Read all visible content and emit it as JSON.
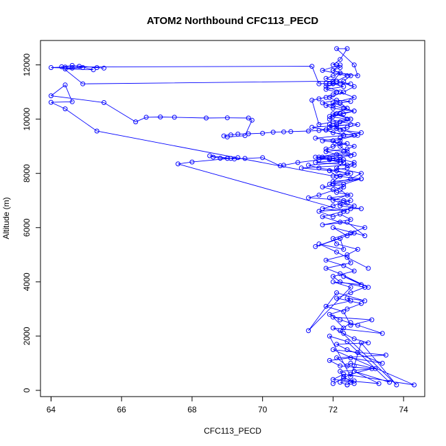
{
  "chart_data": {
    "type": "scatter",
    "title": "ATOM2 Northbound CFC113_PECD",
    "xlabel": "CFC113_PECD",
    "ylabel": "Altitude (m)",
    "xlim": [
      63.7,
      74.6
    ],
    "ylim": [
      -230,
      12900
    ],
    "x_ticks": [
      64,
      66,
      68,
      70,
      72,
      74
    ],
    "y_ticks": [
      0,
      2000,
      4000,
      6000,
      8000,
      10000,
      12000
    ],
    "grid": false,
    "legend": "none",
    "series": [
      {
        "color": "#0000FF",
        "marker": "open-circle",
        "connected": true,
        "x": [
          72.4,
          72.5,
          72.6,
          72.3,
          72.2,
          73.2,
          72.5,
          72.4,
          72.1,
          73.5,
          72.7,
          72.0,
          74.3,
          72.3,
          72.0,
          73.3,
          72.6,
          73.6,
          72.4,
          71.9,
          72.5,
          72.6,
          72.8,
          73.8,
          72.2,
          72.5,
          72.3,
          72.0,
          73.1,
          72.5,
          72.3,
          71.8,
          72.5,
          72.4,
          72.9,
          72.1,
          71.3,
          72.5,
          72.0,
          72.8,
          72.3,
          73.0,
          72.2,
          71.8,
          72.5,
          72.4,
          73.0,
          72.1,
          71.6,
          72.3,
          72.2,
          71.5,
          72.6,
          72.4,
          72.0,
          72.9,
          72.4,
          71.7,
          72.5,
          72.2,
          72.0,
          71.6,
          72.5,
          72.8,
          72.2,
          72.4,
          72.3,
          71.9,
          72.5,
          72.1,
          72.0,
          71.7,
          72.3,
          72.8,
          72.0,
          72.2,
          72.5,
          71.9,
          71.1,
          72.4,
          72.6,
          72.3,
          72.0,
          71.7,
          72.2,
          71.5,
          72.6,
          72.4,
          71.9,
          72.1,
          72.8,
          72.0,
          72.3,
          71.6,
          71.3,
          72.5,
          72.2,
          72.0,
          71.7,
          72.4,
          67.6,
          68.0,
          69.3,
          69.0,
          68.8,
          68.6,
          68.5,
          69.1,
          69.2,
          69.5,
          70.0,
          70.5,
          70.6,
          71.0,
          71.6,
          71.9,
          72.2,
          72.5,
          72.1,
          71.8,
          72.4,
          72.6,
          72.2,
          72.0,
          71.5,
          72.3,
          72.8,
          72.2,
          71.9,
          72.1,
          72.5,
          71.4,
          71.8,
          72.0,
          72.6,
          72.2,
          71.7,
          72.4,
          72.0,
          71.8,
          72.3,
          72.6,
          71.5,
          71.9,
          72.2,
          71.3,
          71.6,
          72.1,
          72.4,
          72.0,
          65.3,
          64.4,
          64.0,
          64.6,
          64.4,
          64.0,
          65.5,
          66.4,
          66.7,
          67.1,
          67.5,
          68.4,
          69.0,
          69.6,
          69.7,
          69.5,
          69.0,
          68.9,
          69.1,
          69.3,
          69.6,
          70.0,
          70.3,
          70.6,
          70.8,
          71.3,
          71.6,
          71.8,
          72.1,
          72.4,
          72.7,
          72.2,
          71.9,
          72.0,
          72.3,
          72.6,
          72.0,
          71.8,
          72.2,
          72.5,
          72.1,
          71.7,
          72.0,
          72.3,
          72.6,
          72.2,
          71.9,
          72.4,
          72.0,
          71.6,
          71.4,
          71.6,
          71.8,
          72.0,
          72.1,
          71.8,
          72.3,
          72.0,
          71.9,
          72.2,
          72.5,
          72.1,
          71.8,
          72.0,
          72.2,
          72.0,
          72.2,
          72.1,
          72.0,
          72.2,
          72.4,
          72.1,
          72.6,
          72.7,
          72.2,
          72.0,
          64.9,
          64.3,
          64.6,
          65.3,
          65.5,
          64.8,
          65.2,
          64.4,
          64.9,
          64.6,
          64.0,
          64.4,
          71.4,
          71.6,
          71.8,
          72.0,
          72.2,
          71.9
        ]
      },
      {
        "color": "#0000FF",
        "marker": "open-circle",
        "connected": true,
        "x": [
          72.4,
          72.2,
          72.6,
          72.3,
          72.0,
          72.5,
          73.1,
          72.2,
          71.9,
          72.5,
          73.4,
          72.4,
          72.1,
          73.0,
          72.6,
          72.3,
          72.0,
          73.4,
          72.7,
          72.2,
          71.9,
          72.4,
          72.8,
          72.1,
          72.5,
          72.9,
          72.2,
          72.0,
          72.6,
          72.3,
          71.8,
          72.4,
          72.7,
          72.1,
          72.0,
          72.5,
          72.9,
          72.2,
          71.7,
          72.3,
          72.6,
          72.0,
          72.4,
          72.2,
          71.9,
          72.5,
          72.8,
          72.1,
          72.3,
          71.6,
          72.4,
          72.2,
          72.0,
          72.7,
          72.3,
          71.9,
          72.5,
          72.1,
          72.4,
          72.0,
          72.6,
          72.2,
          71.8,
          72.3,
          72.5,
          72.0,
          72.2,
          71.7,
          72.4,
          72.1,
          72.6,
          72.3,
          71.9,
          72.2,
          72.4,
          72.0,
          72.5,
          72.1,
          71.8,
          72.3,
          72.2,
          72.0
        ]
      }
    ],
    "y_values": [
      [
        200,
        300,
        250,
        500,
        700,
        800,
        1000,
        900,
        1200,
        1300,
        1400,
        1500,
        200,
        600,
        400,
        250,
        700,
        300,
        1800,
        2000,
        500,
        900,
        1750,
        200,
        2200,
        2500,
        2300,
        2700,
        2600,
        2400,
        2900,
        3100,
        3300,
        3400,
        3300,
        3600,
        2200,
        3800,
        4000,
        3900,
        4200,
        3800,
        4300,
        4500,
        4700,
        4900,
        4500,
        5100,
        5400,
        5200,
        5600,
        5300,
        5800,
        5700,
        6000,
        5700,
        6200,
        6100,
        6300,
        6500,
        6400,
        6600,
        6700,
        6700,
        6800,
        6900,
        7000,
        7100,
        7200,
        7300,
        7400,
        7500,
        7600,
        7800,
        7700,
        7900,
        8000,
        8100,
        8200,
        8300,
        8400,
        8500,
        8550,
        8600,
        8500,
        8400,
        8300,
        8200,
        8100,
        7900,
        7800,
        7600,
        7500,
        7200,
        7100,
        7000,
        6900,
        6800,
        6700,
        6600,
        8350,
        8420,
        8580,
        8550,
        8560,
        8600,
        8650,
        8550,
        8530,
        8550,
        8580,
        8280,
        8300,
        8400,
        8500,
        8550,
        8600,
        8650,
        8700,
        8800,
        8900,
        9000,
        9100,
        9200,
        9300,
        9400,
        9500,
        9600,
        9700,
        9750,
        9800,
        9700,
        9600,
        9500,
        9400,
        9300,
        9200,
        9100,
        9000,
        8900,
        8800,
        8700,
        8600,
        8500,
        8400,
        8300,
        8200,
        8100,
        8000,
        7900,
        9560,
        10380,
        10620,
        10640,
        11260,
        10860,
        10610,
        9900,
        10070,
        10080,
        10070,
        10040,
        10050,
        10040,
        9960,
        9390,
        9340,
        9380,
        9420,
        9450,
        9460,
        9480,
        9520,
        9530,
        9540,
        9560,
        9580,
        9600,
        9650,
        9700,
        9800,
        9900,
        10000,
        10100,
        10200,
        10300,
        10400,
        10500,
        10600,
        10650,
        10700,
        10600,
        10500,
        10400,
        10300,
        10200,
        10100,
        10000,
        9900,
        9800,
        10700,
        10750,
        10800,
        10900,
        11000,
        11100,
        11200,
        11300,
        11300,
        11300,
        11300,
        11400,
        11500,
        11600,
        11700,
        11800,
        11900,
        12000,
        12000,
        12200,
        12600,
        12600,
        12000,
        11600,
        11700,
        11400,
        11300,
        11930,
        11980,
        11900,
        11880,
        11950,
        11820,
        11850,
        11900,
        11880,
        11900,
        11920,
        11950,
        11300,
        11320,
        11310,
        11300,
        11320,
        11310
      ],
      [
        200,
        300,
        350,
        450,
        250,
        600,
        800,
        900,
        1100,
        1200,
        1000,
        1500,
        1700,
        1750,
        1900,
        2100,
        2300,
        2100,
        2400,
        2600,
        2800,
        3000,
        3200,
        3400,
        3600,
        3800,
        4000,
        4200,
        4400,
        4600,
        4800,
        5000,
        5200,
        5400,
        5600,
        5800,
        6000,
        6200,
        6400,
        6600,
        6800,
        7000,
        7200,
        7400,
        7600,
        7800,
        8000,
        8200,
        8400,
        8600,
        8800,
        9000,
        9200,
        9400,
        9600,
        9800,
        10000,
        10200,
        10400,
        10600,
        10800,
        11000,
        11200,
        11400,
        11600,
        11800,
        12000,
        11800,
        11600,
        11400,
        11200,
        11000,
        10800,
        10600,
        10400,
        10200,
        10000,
        9800,
        9600,
        9400,
        9200,
        9000
      ]
    ]
  }
}
